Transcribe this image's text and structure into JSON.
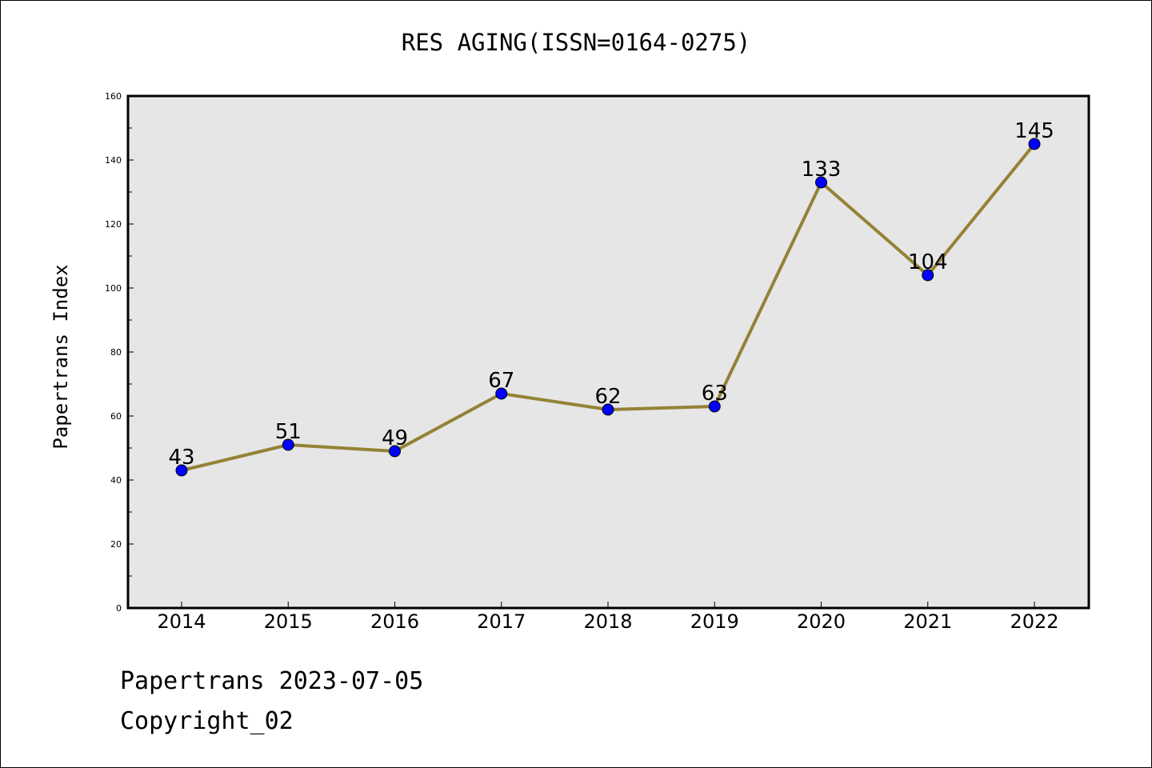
{
  "chart_data": {
    "type": "line",
    "title": "RES AGING(ISSN=0164-0275)",
    "xlabel": "",
    "ylabel": "Papertrans Index",
    "categories": [
      "2014",
      "2015",
      "2016",
      "2017",
      "2018",
      "2019",
      "2020",
      "2021",
      "2022"
    ],
    "series": [
      {
        "values": [
          43,
          51,
          49,
          67,
          62,
          63,
          133,
          104,
          145
        ]
      }
    ],
    "ylim": [
      0,
      160
    ],
    "yticks": [
      0,
      20,
      40,
      60,
      80,
      100,
      120,
      140,
      160
    ],
    "grid": false,
    "legend": "none",
    "colors": {
      "line": "#948236",
      "marker": "#0000ff",
      "plot_background": "#e6e6e6"
    }
  },
  "footer": {
    "line1": "Papertrans 2023-07-05",
    "line2": "Copyright_02"
  }
}
